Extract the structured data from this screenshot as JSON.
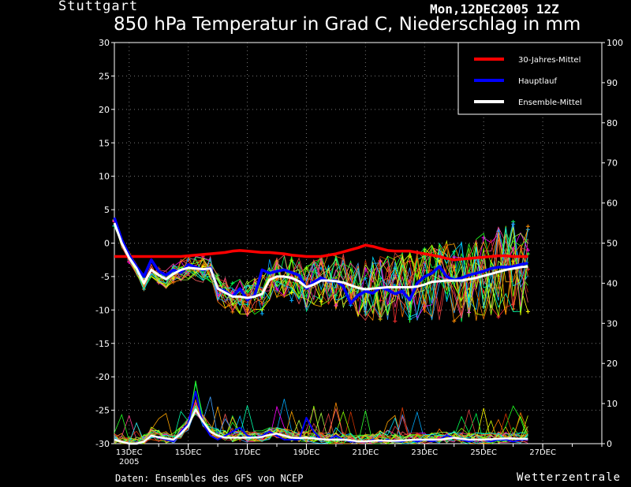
{
  "header": {
    "station": "Stuttgart",
    "run": "Mon,12DEC2005 12Z",
    "title": "850 hPa Temperatur in Grad C, Niederschlag in mm"
  },
  "footer": {
    "source": "Daten: Ensembles des GFS von NCEP",
    "brand": "Wetterzentrale"
  },
  "chart_data": {
    "type": "line",
    "left_axis": {
      "min": -30,
      "max": 30,
      "ticks": [
        -30,
        -25,
        -20,
        -15,
        -10,
        -5,
        0,
        5,
        10,
        15,
        20,
        25,
        30
      ]
    },
    "right_axis": {
      "min": 0,
      "max": 100,
      "ticks": [
        0,
        10,
        20,
        30,
        40,
        50,
        60,
        70,
        80,
        90,
        100
      ]
    },
    "x_range": [
      12.5,
      29.0
    ],
    "x_ticks": [
      {
        "day": 13,
        "label": "13DEC",
        "sub": "2005"
      },
      {
        "day": 15,
        "label": "15DEC",
        "sub": ""
      },
      {
        "day": 17,
        "label": "17DEC",
        "sub": ""
      },
      {
        "day": 19,
        "label": "19DEC",
        "sub": ""
      },
      {
        "day": 21,
        "label": "21DEC",
        "sub": ""
      },
      {
        "day": 23,
        "label": "23DEC",
        "sub": ""
      },
      {
        "day": 25,
        "label": "25DEC",
        "sub": ""
      },
      {
        "day": 27,
        "label": "27DEC",
        "sub": ""
      }
    ],
    "grid": true,
    "legend_position": "top-right",
    "legend": [
      {
        "label": "30-Jahres-Mittel",
        "color": "#ff0000"
      },
      {
        "label": "Hauptlauf",
        "color": "#0000ff"
      },
      {
        "label": "Ensemble-Mittel",
        "color": "#ffffff"
      }
    ],
    "x_start": 12.5,
    "x_step": 0.25,
    "temperature": {
      "clim": [
        -2,
        -2,
        -2,
        -2,
        -2,
        -2,
        -2,
        -2,
        -2,
        -2,
        -1.9,
        -1.8,
        -1.7,
        -1.6,
        -1.5,
        -1.4,
        -1.2,
        -1.1,
        -1.2,
        -1.3,
        -1.4,
        -1.4,
        -1.5,
        -1.6,
        -1.8,
        -1.9,
        -2,
        -2,
        -2,
        -1.8,
        -1.6,
        -1.3,
        -1,
        -0.7,
        -0.3,
        -0.5,
        -0.8,
        -1.1,
        -1.2,
        -1.2,
        -1.2,
        -1.4,
        -1.6,
        -1.8,
        -2,
        -2.3,
        -2.5,
        -2.4,
        -2.3,
        -2.2,
        -2.1,
        -2,
        -1.9,
        -1.9,
        -2,
        -2,
        -2
      ],
      "main": [
        3.8,
        0.5,
        -1.8,
        -3.5,
        -5,
        -2.5,
        -4.2,
        -4.8,
        -4,
        -4.4,
        -3.2,
        -3.6,
        -4,
        -3.7,
        -6.8,
        -7.2,
        -8,
        -6.8,
        -8.5,
        -7.8,
        -4,
        -4.5,
        -4.2,
        -4,
        -4.4,
        -4.8,
        -6.8,
        -5.8,
        -5.2,
        -5.7,
        -5.6,
        -6.5,
        -9,
        -7.8,
        -7.2,
        -7.5,
        -6.6,
        -7,
        -7.6,
        -7.2,
        -8.5,
        -6,
        -5,
        -4.5,
        -3.5,
        -5,
        -5.5,
        -5.2,
        -4.8,
        -4.5,
        -4.2,
        -3.8,
        -3.6,
        -3.6,
        -3.5,
        -3.2,
        -3
      ],
      "mean": [
        3,
        0,
        -2.2,
        -3.8,
        -6,
        -4,
        -4.8,
        -5.4,
        -4.6,
        -4,
        -3.7,
        -3.8,
        -3.9,
        -3.8,
        -6.8,
        -7.4,
        -8,
        -8,
        -8.2,
        -8,
        -7.6,
        -5.5,
        -5,
        -5,
        -5.2,
        -5.7,
        -6.6,
        -6.2,
        -5.6,
        -5.6,
        -5.7,
        -5.9,
        -6.3,
        -6.7,
        -6.9,
        -6.8,
        -6.7,
        -6.6,
        -6.6,
        -6.6,
        -6.6,
        -6.5,
        -6.2,
        -5.8,
        -5.7,
        -5.6,
        -5.6,
        -5.6,
        -5.4,
        -5.2,
        -4.9,
        -4.6,
        -4.3,
        -4,
        -3.8,
        -3.6,
        -3.5
      ]
    },
    "precipitation": {
      "main": [
        1,
        0.5,
        0,
        0,
        0.5,
        2,
        1.5,
        1,
        0.5,
        3,
        5,
        13,
        5,
        2,
        1,
        2,
        3,
        4,
        2,
        1.5,
        2,
        3,
        2,
        1,
        1,
        1,
        6.5,
        3,
        1,
        1,
        2,
        1,
        0.5,
        0.5,
        0.5,
        1,
        0.5,
        1,
        0.5,
        0.5,
        1,
        0.5,
        1,
        0.5,
        1,
        2,
        1.5,
        1,
        0.5,
        1,
        1,
        0.5,
        1,
        1,
        0.5,
        1,
        1
      ],
      "mean": [
        1,
        0.5,
        0,
        0,
        0.5,
        2,
        1.6,
        1.3,
        1,
        2.5,
        4.5,
        8.5,
        5.5,
        3,
        2,
        1.5,
        1.5,
        1.5,
        1.5,
        1.5,
        1.7,
        2.2,
        2.5,
        2,
        1.5,
        1.4,
        1.5,
        1.3,
        1.1,
        1,
        1,
        1,
        0.8,
        0.6,
        0.6,
        0.7,
        0.8,
        0.7,
        0.7,
        0.8,
        0.9,
        1,
        1,
        1,
        1,
        1.2,
        1.5,
        1.2,
        1,
        1,
        1,
        1.1,
        1.2,
        1.3,
        1.3,
        1.2,
        1.2
      ]
    }
  }
}
